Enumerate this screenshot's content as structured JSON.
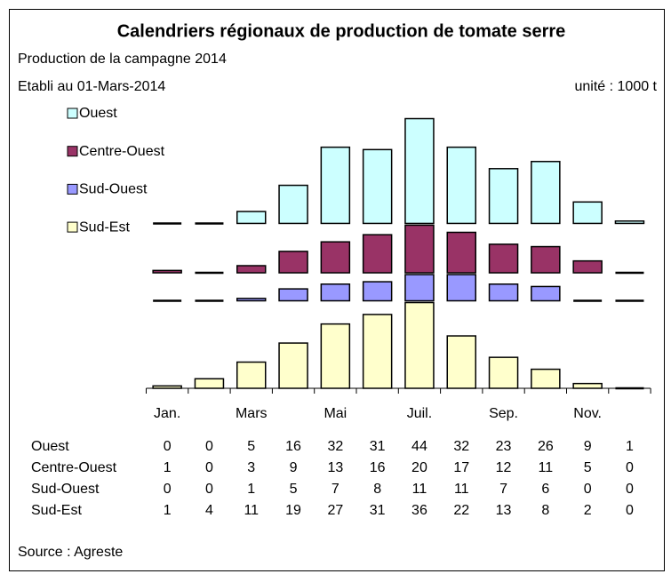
{
  "chart_data": {
    "type": "bar",
    "title": "Calendriers régionaux de production de tomate serre",
    "subtitle": "Production de la campagne 2014",
    "note": "Etabli au 01-Mars-2014",
    "unit": "unité : 1000 t",
    "source": "Source : Agreste",
    "categories": [
      "Jan.",
      null,
      "Mars",
      null,
      "Mai",
      null,
      "Juil.",
      null,
      "Sep.",
      null,
      "Nov.",
      null
    ],
    "series": [
      {
        "name": "Ouest",
        "color": "#ccffff",
        "values": [
          0,
          0,
          5,
          16,
          32,
          31,
          44,
          32,
          23,
          26,
          9,
          1
        ]
      },
      {
        "name": "Centre-Ouest",
        "color": "#993366",
        "values": [
          1,
          0,
          3,
          9,
          13,
          16,
          20,
          17,
          12,
          11,
          5,
          0
        ]
      },
      {
        "name": "Sud-Ouest",
        "color": "#9999ff",
        "values": [
          0,
          0,
          1,
          5,
          7,
          8,
          11,
          11,
          7,
          6,
          0,
          0
        ]
      },
      {
        "name": "Sud-Est",
        "color": "#ffffcc",
        "values": [
          1,
          4,
          11,
          19,
          27,
          31,
          36,
          22,
          13,
          8,
          2,
          0
        ]
      }
    ]
  }
}
